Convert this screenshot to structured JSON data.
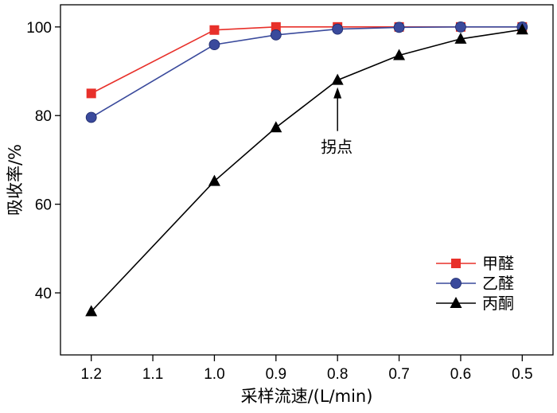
{
  "chart_data": {
    "type": "line",
    "xlabel": "采样流速/(L/min)",
    "ylabel": "吸收率/%",
    "x_ticks": [
      "1.2",
      "1.1",
      "1.0",
      "0.9",
      "0.8",
      "0.7",
      "0.6",
      "0.5"
    ],
    "y_ticks": [
      "40",
      "60",
      "80",
      "100"
    ],
    "xlim": [
      1.25,
      0.45
    ],
    "ylim": [
      26,
      105
    ],
    "x_axis_reversed": true,
    "grid": false,
    "legend_position": "lower-right",
    "x": [
      1.2,
      1.0,
      0.9,
      0.8,
      0.7,
      0.6,
      0.5
    ],
    "series": [
      {
        "name": "甲醛",
        "color": "#e8302a",
        "marker": "square",
        "values": [
          85.0,
          99.3,
          100.0,
          100.0,
          100.0,
          100.0,
          100.0
        ]
      },
      {
        "name": "乙醛",
        "color": "#3a4a9c",
        "marker": "circle",
        "values": [
          79.6,
          96.0,
          98.2,
          99.5,
          99.9,
          100.0,
          100.0
        ]
      },
      {
        "name": "丙酮",
        "color": "#000000",
        "marker": "triangle",
        "values": [
          35.8,
          65.2,
          77.3,
          88.0,
          93.6,
          97.3,
          99.4
        ]
      }
    ],
    "annotations": [
      {
        "text": "拐点",
        "x": 0.8,
        "y": 88.0
      }
    ]
  }
}
